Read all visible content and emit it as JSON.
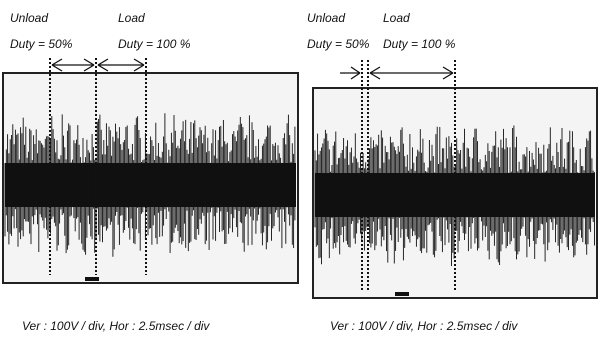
{
  "panels": [
    {
      "unload_label": "Unload",
      "unload_duty": "Duty = 50%",
      "load_label": "Load",
      "load_duty": "Duty = 100 %",
      "caption": "Ver : 100V / div,  Hor : 2.5msec / div"
    },
    {
      "unload_label": "Unload",
      "unload_duty": "Duty = 50%",
      "load_label": "Load",
      "load_duty": "Duty = 100 %",
      "caption": "Ver : 100V / div,  Hor : 2.5msec / div"
    }
  ]
}
